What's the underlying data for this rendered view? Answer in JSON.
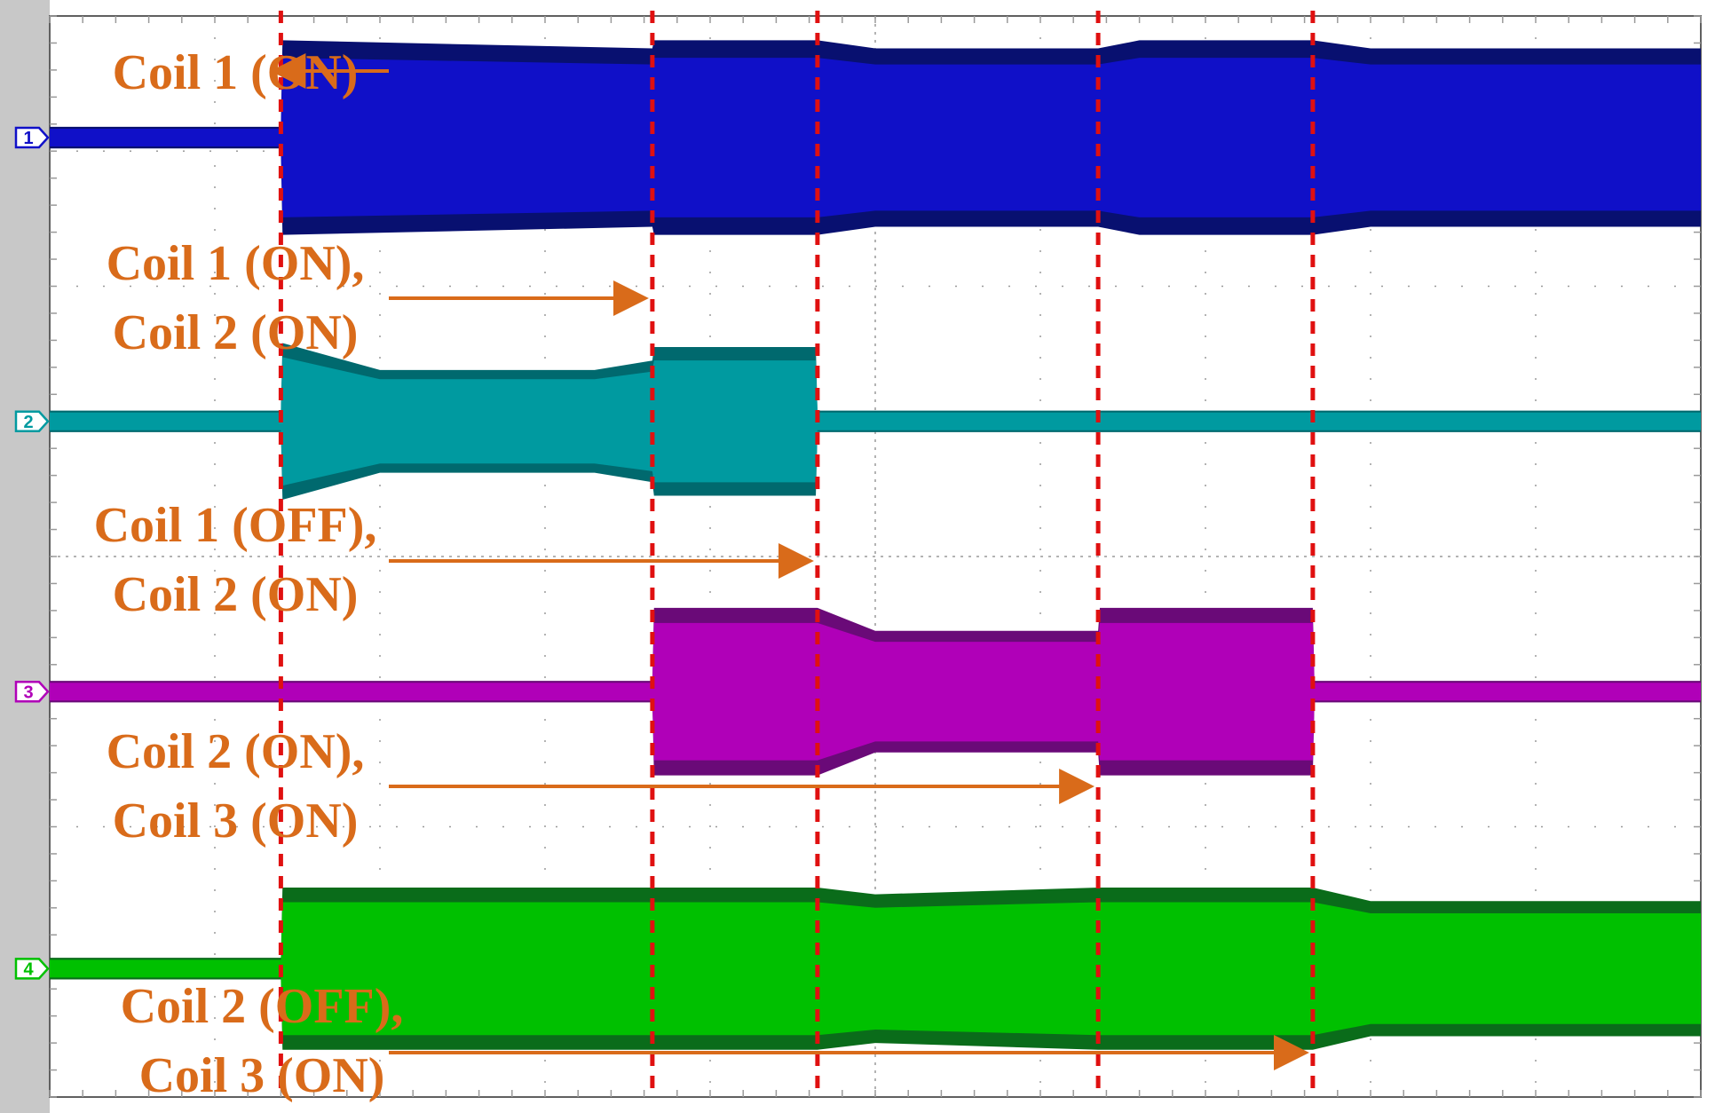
{
  "chart_data": {
    "type": "line",
    "title": "",
    "xlabel": "",
    "ylabel": "",
    "grid": true,
    "xlim": [
      0,
      10
    ],
    "ylim": [
      0,
      8
    ],
    "timeline_events": [
      1.4,
      3.65,
      4.65,
      6.35,
      7.65
    ],
    "channels": [
      {
        "id": "1",
        "marker_label": "1",
        "color": "#1010c8",
        "dark_color": "#081070",
        "baseline": 7.1,
        "idle_halfwidth": 0.08,
        "envelope": [
          [
            0,
            0
          ],
          [
            1.4,
            0
          ],
          [
            1.41,
            0.72
          ],
          [
            3.65,
            0.66
          ],
          [
            3.66,
            0.72
          ],
          [
            4.65,
            0.72
          ],
          [
            5.0,
            0.66
          ],
          [
            6.35,
            0.66
          ],
          [
            6.6,
            0.72
          ],
          [
            7.65,
            0.72
          ],
          [
            8.0,
            0.66
          ],
          [
            10,
            0.66
          ]
        ]
      },
      {
        "id": "2",
        "marker_label": "2",
        "color": "#009aa0",
        "dark_color": "#00696e",
        "baseline": 5.0,
        "idle_halfwidth": 0.08,
        "envelope": [
          [
            0,
            0
          ],
          [
            1.4,
            0
          ],
          [
            1.41,
            0.58
          ],
          [
            2.0,
            0.38
          ],
          [
            3.3,
            0.38
          ],
          [
            3.65,
            0.45
          ],
          [
            3.66,
            0.55
          ],
          [
            4.64,
            0.55
          ],
          [
            4.65,
            0
          ],
          [
            10,
            0
          ]
        ]
      },
      {
        "id": "3",
        "marker_label": "3",
        "color": "#b000b8",
        "dark_color": "#6a0a78",
        "baseline": 3.0,
        "idle_halfwidth": 0.08,
        "envelope": [
          [
            0,
            0
          ],
          [
            3.65,
            0
          ],
          [
            3.66,
            0.62
          ],
          [
            4.65,
            0.62
          ],
          [
            5.0,
            0.45
          ],
          [
            6.35,
            0.45
          ],
          [
            6.36,
            0.62
          ],
          [
            7.65,
            0.62
          ],
          [
            7.66,
            0
          ],
          [
            10,
            0
          ]
        ]
      },
      {
        "id": "4",
        "marker_label": "4",
        "color": "#00c000",
        "dark_color": "#0a6c1a",
        "baseline": 0.95,
        "idle_halfwidth": 0.08,
        "envelope": [
          [
            0,
            0
          ],
          [
            1.4,
            0
          ],
          [
            1.41,
            0.6
          ],
          [
            3.65,
            0.6
          ],
          [
            4.65,
            0.6
          ],
          [
            5.0,
            0.55
          ],
          [
            6.35,
            0.6
          ],
          [
            7.65,
            0.6
          ],
          [
            8.0,
            0.5
          ],
          [
            10,
            0.5
          ]
        ]
      }
    ],
    "annotations": [
      {
        "lines": [
          "Coil 1 (ON)"
        ],
        "arrow_to": 1.4
      },
      {
        "lines": [
          "Coil 1 (ON),",
          "Coil 2 (ON)"
        ],
        "arrow_to": 3.65
      },
      {
        "lines": [
          "Coil 1 (OFF),",
          "Coil 2 (ON)"
        ],
        "arrow_to": 4.65
      },
      {
        "lines": [
          "Coil 2 (ON),",
          "Coil 3 (ON)"
        ],
        "arrow_to": 6.35
      },
      {
        "lines": [
          "Coil 2 (OFF),",
          "Coil 3 (ON)"
        ],
        "arrow_to": 7.65
      }
    ],
    "colors": {
      "annotation": "#d96b1a",
      "event_line": "#e01010",
      "grid": "#9a9a9a",
      "frame": "#606060",
      "panel": "#c8c8c8"
    }
  }
}
